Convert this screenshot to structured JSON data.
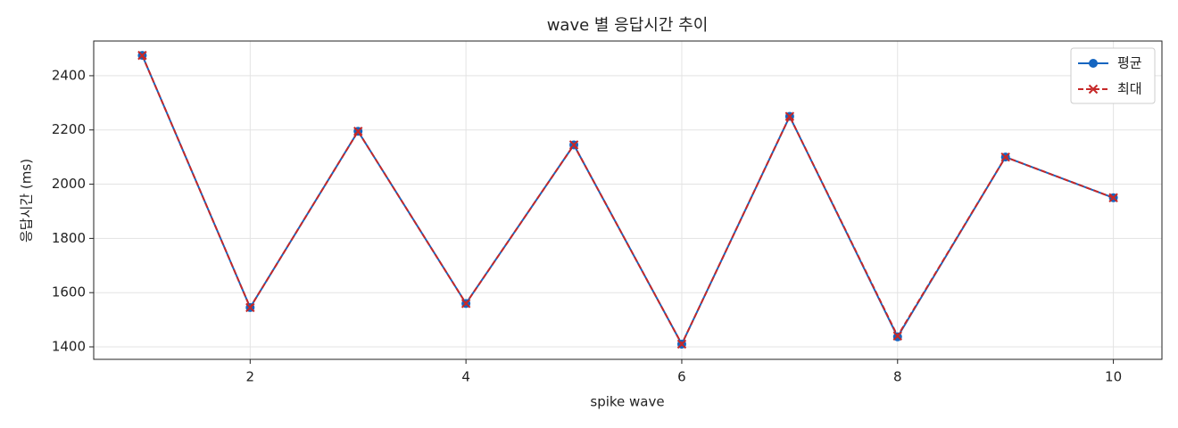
{
  "chart_data": {
    "type": "line",
    "title": "wave 별 응답시간 추이",
    "x_label": "spike wave",
    "y_label": "응답시간 (ms)",
    "x": [
      1,
      2,
      3,
      4,
      5,
      6,
      7,
      8,
      9,
      10
    ],
    "series": [
      {
        "name": "평균",
        "color": "#1565c0",
        "marker": "o",
        "dash": "solid",
        "values": [
          2475,
          1545,
          2195,
          1560,
          2145,
          1410,
          2250,
          1437,
          2100,
          1950
        ]
      },
      {
        "name": "최대",
        "color": "#c62828",
        "marker": "x",
        "dash": "dashed",
        "values": [
          2475,
          1545,
          2195,
          1560,
          2145,
          1410,
          2250,
          1440,
          2100,
          1950
        ]
      }
    ],
    "xlim": [
      0.55,
      10.45
    ],
    "ylim": [
      1354,
      2528
    ],
    "xticks": [
      2,
      4,
      6,
      8,
      10
    ],
    "yticks": [
      1400,
      1600,
      1800,
      2000,
      2200,
      2400
    ],
    "grid": true,
    "legend": "upper right"
  }
}
